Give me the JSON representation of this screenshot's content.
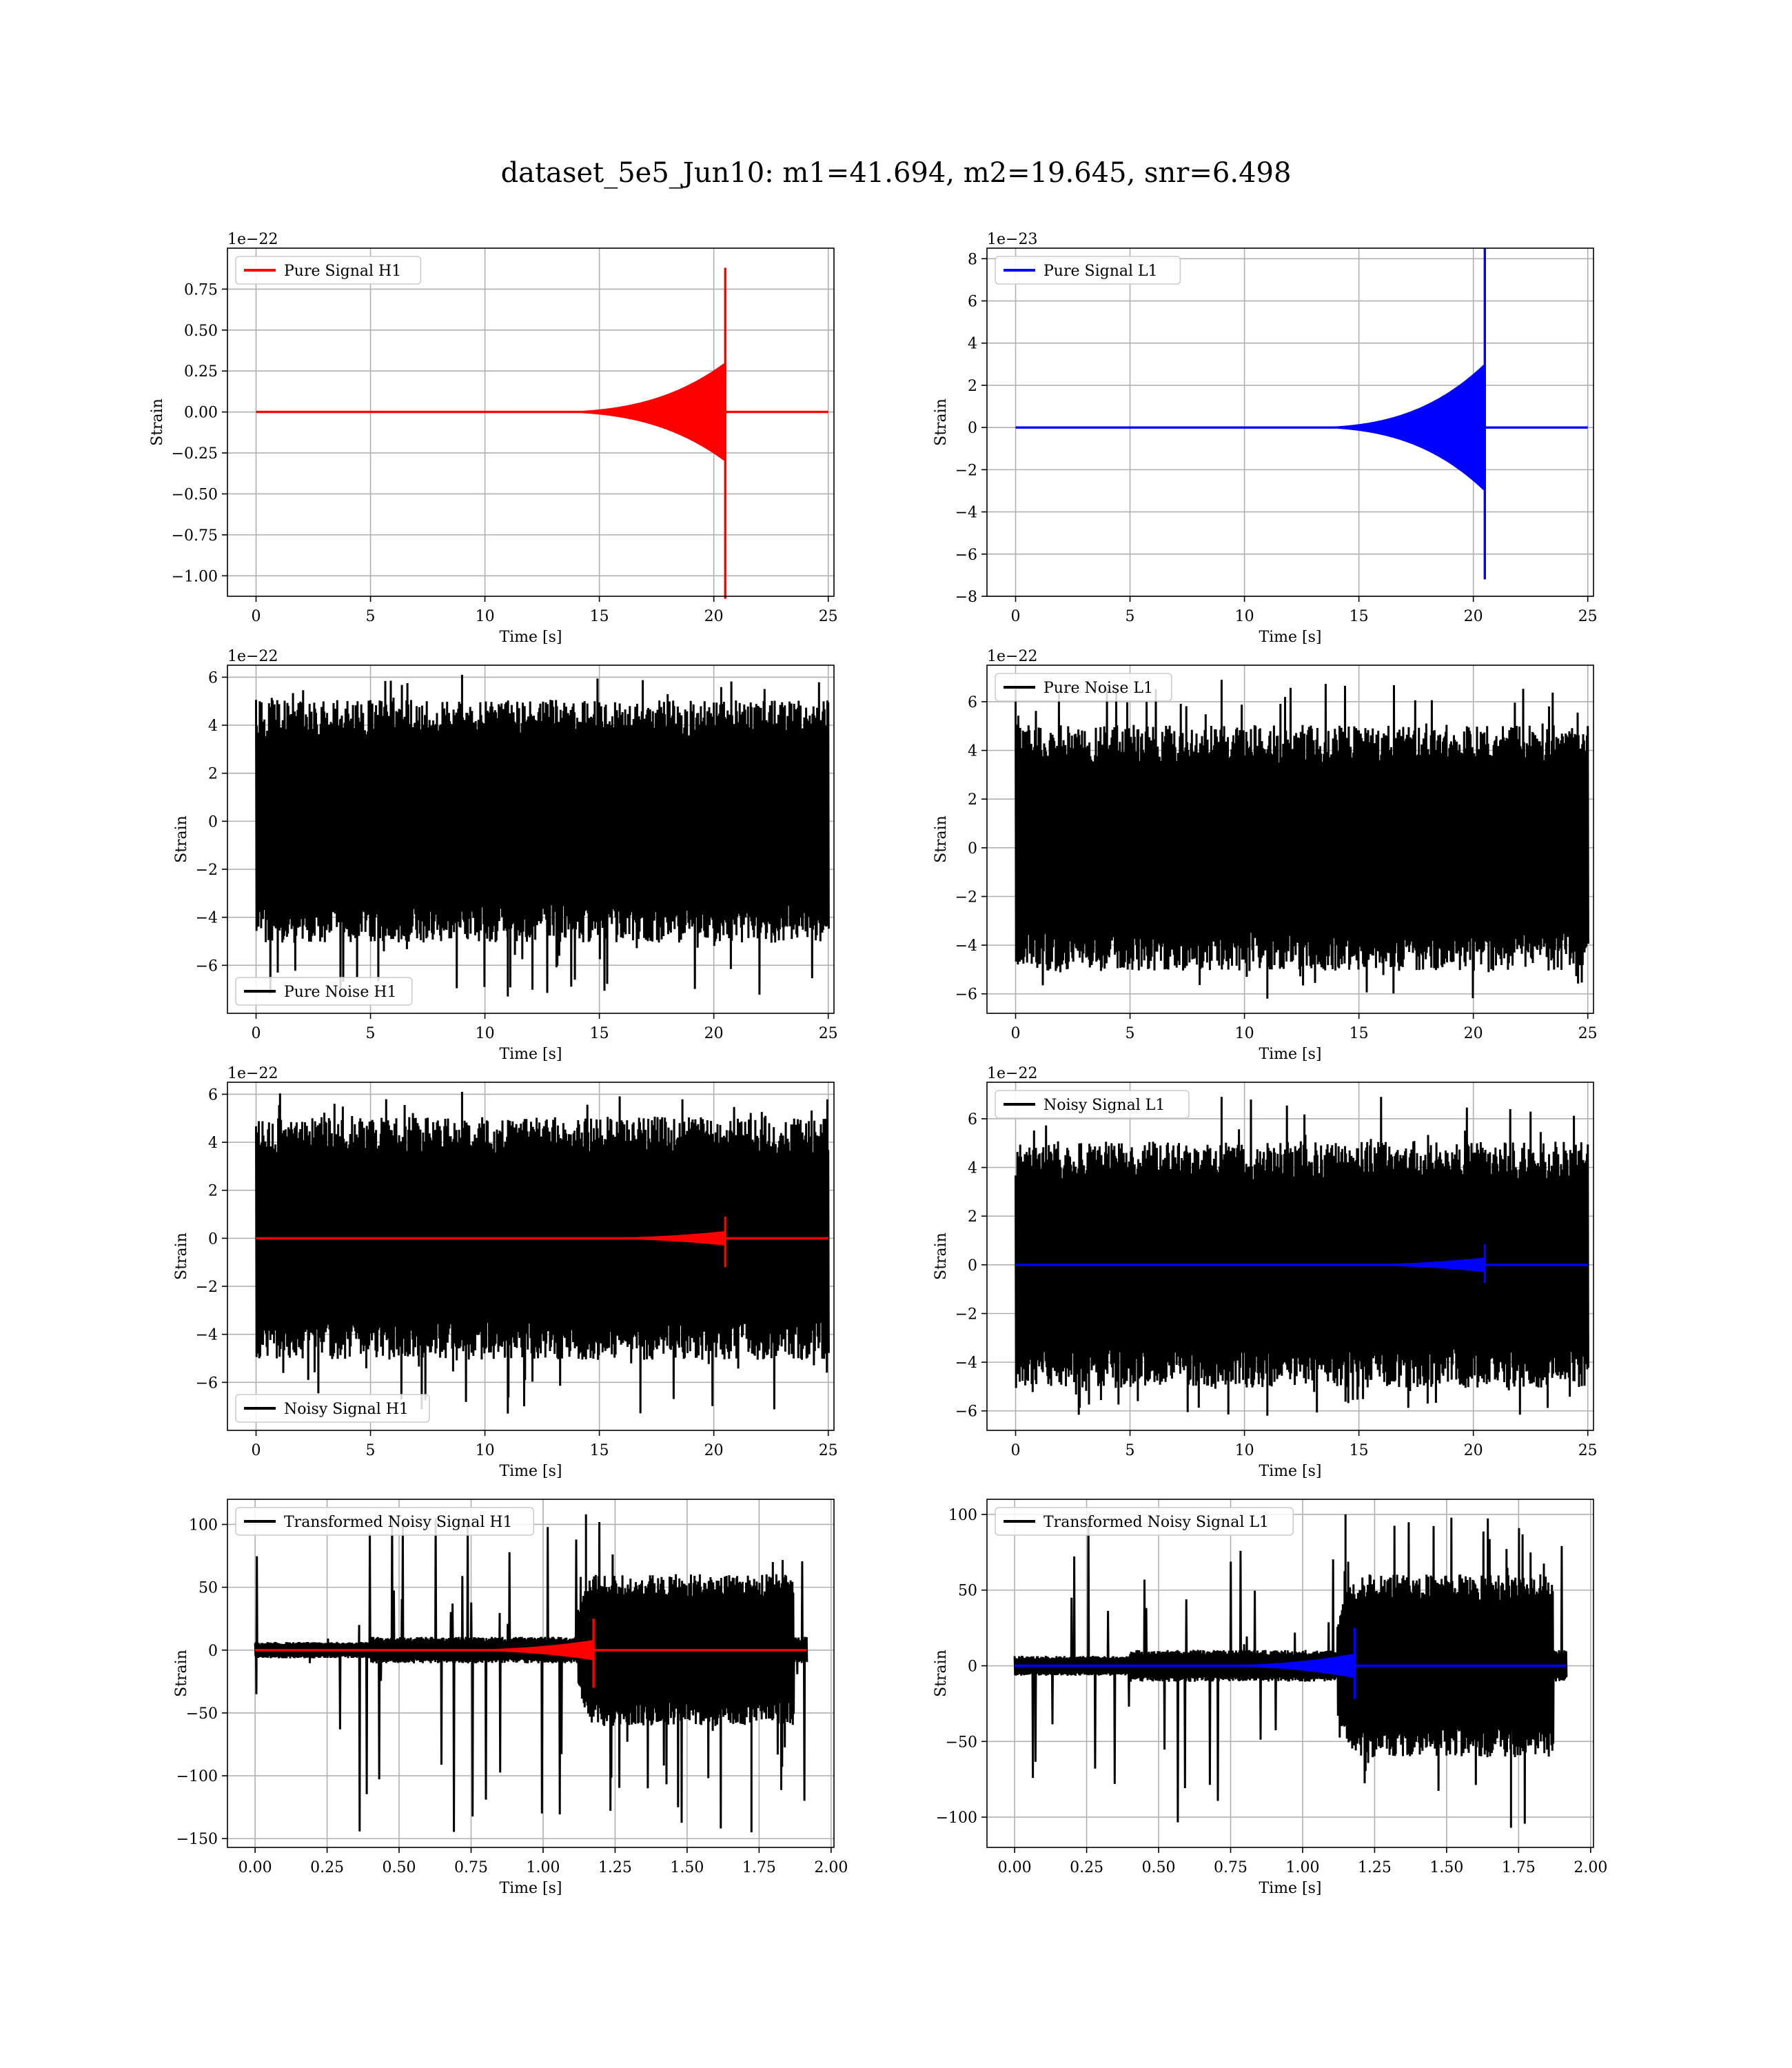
{
  "figure": {
    "title": "dataset_5e5_Jun10: m1=41.694, m2=19.645, snr=6.498"
  },
  "chart_data": [
    {
      "id": "pure-signal-h1",
      "type": "line",
      "legend": {
        "label": "Pure Signal H1",
        "color": "#ff0000",
        "placement": "upper-left"
      },
      "xlabel": "Time [s]",
      "ylabel": "Strain",
      "offset_text": "1e−22",
      "xlim": [
        -1.25,
        25.25
      ],
      "ylim": [
        -1.125,
        1.0
      ],
      "xticks": [
        0,
        5,
        10,
        15,
        20,
        25
      ],
      "xtick_labels": [
        "0",
        "5",
        "10",
        "15",
        "20",
        "25"
      ],
      "yticks": [
        0.75,
        0.5,
        0.25,
        0.0,
        -0.25,
        -0.5,
        -0.75,
        -1.0
      ],
      "ytick_labels": [
        "0.75",
        "0.50",
        "0.25",
        "0.00",
        "−0.25",
        "−0.50",
        "−0.75",
        "−1.00"
      ],
      "grid": true,
      "series": [
        {
          "kind": "chirp",
          "color": "#ff0000",
          "x_range": [
            0,
            25
          ],
          "merger_t": 20.5,
          "peak": 0.88,
          "trough": -1.14,
          "pre_merger_amp": 0.3
        }
      ]
    },
    {
      "id": "pure-signal-l1",
      "type": "line",
      "legend": {
        "label": "Pure Signal L1",
        "color": "#0000ff",
        "placement": "upper-left"
      },
      "xlabel": "Time [s]",
      "ylabel": "Strain",
      "offset_text": "1e−23",
      "xlim": [
        -1.25,
        25.25
      ],
      "ylim": [
        -8,
        8.5
      ],
      "xticks": [
        0,
        5,
        10,
        15,
        20,
        25
      ],
      "xtick_labels": [
        "0",
        "5",
        "10",
        "15",
        "20",
        "25"
      ],
      "yticks": [
        8,
        6,
        4,
        2,
        0,
        -2,
        -4,
        -6,
        -8
      ],
      "ytick_labels": [
        "8",
        "6",
        "4",
        "2",
        "0",
        "−2",
        "−4",
        "−6",
        "−8"
      ],
      "grid": true,
      "series": [
        {
          "kind": "chirp",
          "color": "#0000ff",
          "x_range": [
            0,
            25
          ],
          "merger_t": 20.5,
          "peak": 8.5,
          "trough": -7.2,
          "pre_merger_amp": 3.0
        }
      ]
    },
    {
      "id": "pure-noise-h1",
      "type": "line",
      "legend": {
        "label": "Pure Noise H1",
        "color": "#000000",
        "placement": "lower-left"
      },
      "xlabel": "Time [s]",
      "ylabel": "Strain",
      "offset_text": "1e−22",
      "xlim": [
        -1.25,
        25.25
      ],
      "ylim": [
        -8,
        6.5
      ],
      "xticks": [
        0,
        5,
        10,
        15,
        20,
        25
      ],
      "xtick_labels": [
        "0",
        "5",
        "10",
        "15",
        "20",
        "25"
      ],
      "yticks": [
        6,
        4,
        2,
        0,
        -2,
        -4,
        -6
      ],
      "ytick_labels": [
        "6",
        "4",
        "2",
        "0",
        "−2",
        "−4",
        "−6"
      ],
      "grid": true,
      "series": [
        {
          "kind": "noise",
          "color": "#000000",
          "x_range": [
            0,
            25
          ],
          "amp": 4.6,
          "max": 6.1,
          "min": -7.3
        }
      ]
    },
    {
      "id": "pure-noise-l1",
      "type": "line",
      "legend": {
        "label": "Pure Noise L1",
        "color": "#000000",
        "placement": "upper-left"
      },
      "xlabel": "Time [s]",
      "ylabel": "Strain",
      "offset_text": "1e−22",
      "xlim": [
        -1.25,
        25.25
      ],
      "ylim": [
        -6.8,
        7.5
      ],
      "xticks": [
        0,
        5,
        10,
        15,
        20,
        25
      ],
      "xtick_labels": [
        "0",
        "5",
        "10",
        "15",
        "20",
        "25"
      ],
      "yticks": [
        6,
        4,
        2,
        0,
        -2,
        -4,
        -6
      ],
      "ytick_labels": [
        "6",
        "4",
        "2",
        "0",
        "−2",
        "−4",
        "−6"
      ],
      "grid": true,
      "series": [
        {
          "kind": "noise",
          "color": "#000000",
          "x_range": [
            0,
            25
          ],
          "amp": 4.6,
          "max": 6.9,
          "min": -6.2
        }
      ]
    },
    {
      "id": "noisy-signal-h1",
      "type": "line",
      "legend": {
        "label": "Noisy Signal H1",
        "color": "#000000",
        "placement": "lower-left"
      },
      "xlabel": "Time [s]",
      "ylabel": "Strain",
      "offset_text": "1e−22",
      "xlim": [
        -1.25,
        25.25
      ],
      "ylim": [
        -8,
        6.5
      ],
      "xticks": [
        0,
        5,
        10,
        15,
        20,
        25
      ],
      "xtick_labels": [
        "0",
        "5",
        "10",
        "15",
        "20",
        "25"
      ],
      "yticks": [
        6,
        4,
        2,
        0,
        -2,
        -4,
        -6
      ],
      "ytick_labels": [
        "6",
        "4",
        "2",
        "0",
        "−2",
        "−4",
        "−6"
      ],
      "grid": true,
      "series": [
        {
          "kind": "noise",
          "color": "#000000",
          "x_range": [
            0,
            25
          ],
          "amp": 4.6,
          "max": 6.1,
          "min": -7.3
        },
        {
          "kind": "chirp",
          "color": "#ff0000",
          "x_range": [
            0,
            25
          ],
          "merger_t": 20.5,
          "peak": 0.9,
          "trough": -1.2,
          "pre_merger_amp": 0.3
        }
      ]
    },
    {
      "id": "noisy-signal-l1",
      "type": "line",
      "legend": {
        "label": "Noisy Signal L1",
        "color": "#000000",
        "placement": "upper-left"
      },
      "xlabel": "Time [s]",
      "ylabel": "Strain",
      "offset_text": "1e−22",
      "xlim": [
        -1.25,
        25.25
      ],
      "ylim": [
        -6.8,
        7.5
      ],
      "xticks": [
        0,
        5,
        10,
        15,
        20,
        25
      ],
      "xtick_labels": [
        "0",
        "5",
        "10",
        "15",
        "20",
        "25"
      ],
      "yticks": [
        6,
        4,
        2,
        0,
        -2,
        -4,
        -6
      ],
      "ytick_labels": [
        "6",
        "4",
        "2",
        "0",
        "−2",
        "−4",
        "−6"
      ],
      "grid": true,
      "series": [
        {
          "kind": "noise",
          "color": "#000000",
          "x_range": [
            0,
            25
          ],
          "amp": 4.6,
          "max": 6.9,
          "min": -6.2
        },
        {
          "kind": "chirp",
          "color": "#0000ff",
          "x_range": [
            0,
            25
          ],
          "merger_t": 20.5,
          "peak": 0.85,
          "trough": -0.75,
          "pre_merger_amp": 0.3
        }
      ]
    },
    {
      "id": "transformed-noisy-signal-h1",
      "type": "line",
      "legend": {
        "label": "Transformed Noisy Signal H1",
        "color": "#000000",
        "placement": "upper-left"
      },
      "xlabel": "Time [s]",
      "ylabel": "Strain",
      "offset_text": "",
      "xlim": [
        -0.096,
        2.01
      ],
      "ylim": [
        -157,
        120
      ],
      "xticks": [
        0,
        0.25,
        0.5,
        0.75,
        1.0,
        1.25,
        1.5,
        1.75,
        2.0
      ],
      "xtick_labels": [
        "0.00",
        "0.25",
        "0.50",
        "0.75",
        "1.00",
        "1.25",
        "1.50",
        "1.75",
        "2.00"
      ],
      "yticks": [
        100,
        50,
        0,
        -50,
        -100,
        -150
      ],
      "ytick_labels": [
        "100",
        "50",
        "0",
        "−50",
        "−100",
        "−150"
      ],
      "grid": true,
      "series": [
        {
          "kind": "tnoise",
          "color": "#000000",
          "x_range": [
            0,
            1.915
          ],
          "onset_t": 1.12,
          "end_t": 1.87,
          "low_amp": 6,
          "high_amp": 55,
          "max": 108,
          "min": -145
        },
        {
          "kind": "chirp",
          "color": "#ff0000",
          "x_range": [
            0,
            1.915
          ],
          "merger_t": 1.175,
          "peak": 25,
          "trough": -30,
          "pre_merger_amp": 8
        }
      ]
    },
    {
      "id": "transformed-noisy-signal-l1",
      "type": "line",
      "legend": {
        "label": "Transformed Noisy Signal L1",
        "color": "#000000",
        "placement": "upper-left"
      },
      "xlabel": "Time [s]",
      "ylabel": "Strain",
      "offset_text": "",
      "xlim": [
        -0.096,
        2.01
      ],
      "ylim": [
        -120,
        110
      ],
      "xticks": [
        0,
        0.25,
        0.5,
        0.75,
        1.0,
        1.25,
        1.5,
        1.75,
        2.0
      ],
      "xtick_labels": [
        "0.00",
        "0.25",
        "0.50",
        "0.75",
        "1.00",
        "1.25",
        "1.50",
        "1.75",
        "2.00"
      ],
      "yticks": [
        100,
        50,
        0,
        -50,
        -100
      ],
      "ytick_labels": [
        "100",
        "50",
        "0",
        "−50",
        "−100"
      ],
      "grid": true,
      "series": [
        {
          "kind": "tnoise",
          "color": "#000000",
          "x_range": [
            0,
            1.915
          ],
          "onset_t": 1.12,
          "end_t": 1.87,
          "low_amp": 6,
          "high_amp": 55,
          "max": 100,
          "min": -107
        },
        {
          "kind": "chirp",
          "color": "#0000ff",
          "x_range": [
            0,
            1.915
          ],
          "merger_t": 1.18,
          "peak": 25,
          "trough": -22,
          "pre_merger_amp": 8
        }
      ]
    }
  ]
}
